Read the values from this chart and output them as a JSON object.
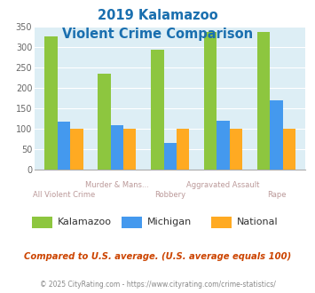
{
  "title_line1": "2019 Kalamazoo",
  "title_line2": "Violent Crime Comparison",
  "categories": [
    "All Violent Crime",
    "Murder & Mans...",
    "Robbery",
    "Aggravated Assault",
    "Rape"
  ],
  "cat_row1": [
    "Murder & Mans...",
    "Aggravated Assault"
  ],
  "cat_row1_idx": [
    1,
    3
  ],
  "cat_row2": [
    "All Violent Crime",
    "Robbery",
    "Rape"
  ],
  "cat_row2_idx": [
    0,
    2,
    4
  ],
  "series": {
    "Kalamazoo": [
      325,
      235,
      292,
      337,
      337
    ],
    "Michigan": [
      117,
      110,
      65,
      120,
      170
    ],
    "National": [
      100,
      100,
      100,
      100,
      100
    ]
  },
  "colors": {
    "Kalamazoo": "#8dc63f",
    "Michigan": "#4499ee",
    "National": "#ffaa22"
  },
  "ylim": [
    0,
    350
  ],
  "yticks": [
    0,
    50,
    100,
    150,
    200,
    250,
    300,
    350
  ],
  "plot_bg": "#ddeef5",
  "title_color": "#1a6faf",
  "label_color": "#bb9999",
  "footer_text": "Compared to U.S. average. (U.S. average equals 100)",
  "copyright_text": "© 2025 CityRating.com - https://www.cityrating.com/crime-statistics/",
  "footer_color": "#cc4400",
  "copyright_color": "#888888",
  "legend_label_color": "#333333"
}
